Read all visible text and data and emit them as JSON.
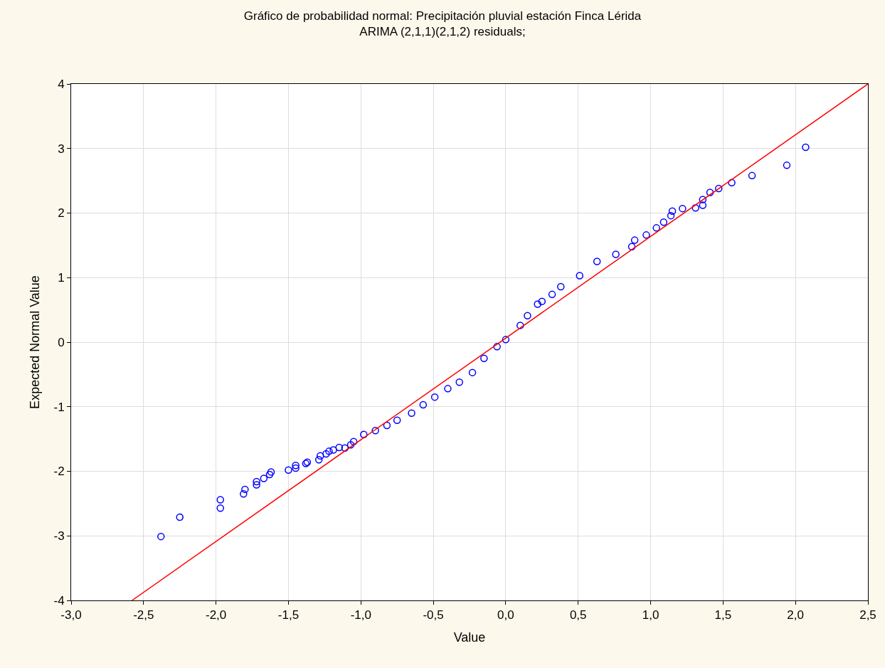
{
  "chart_data": {
    "type": "scatter",
    "title": "Gráfico de probabilidad normal: Precipitación pluvial estación Finca Lérida",
    "subtitle": "ARIMA (2,1,1)(2,1,2) residuals;",
    "xlabel": "Value",
    "ylabel": "Expected Normal Value",
    "series": [
      {
        "color": "#0000ff",
        "marker": "circle",
        "x": [
          -2.38,
          -2.25,
          -1.97,
          -1.97,
          -1.81,
          -1.8,
          -1.72,
          -1.72,
          -1.67,
          -1.63,
          -1.62,
          -1.5,
          -1.45,
          -1.45,
          -1.38,
          -1.37,
          -1.29,
          -1.28,
          -1.24,
          -1.22,
          -1.19,
          -1.15,
          -1.11,
          -1.07,
          -1.05,
          -0.98,
          -0.9,
          -0.82,
          -0.75,
          -0.65,
          -0.57,
          -0.49,
          -0.4,
          -0.32,
          -0.23,
          -0.15,
          -0.06,
          0.0,
          0.1,
          0.15,
          0.22,
          0.25,
          0.32,
          0.38,
          0.51,
          0.63,
          0.76,
          0.87,
          0.89,
          0.97,
          1.04,
          1.09,
          1.14,
          1.15,
          1.22,
          1.31,
          1.36,
          1.36,
          1.41,
          1.47,
          1.56,
          1.7,
          1.94,
          2.07
        ],
        "values": [
          -3.01,
          -2.71,
          -2.57,
          -2.44,
          -2.35,
          -2.28,
          -2.21,
          -2.16,
          -2.11,
          -2.05,
          -2.01,
          -1.98,
          -1.95,
          -1.91,
          -1.88,
          -1.86,
          -1.82,
          -1.76,
          -1.73,
          -1.69,
          -1.67,
          -1.63,
          -1.64,
          -1.59,
          -1.54,
          -1.43,
          -1.37,
          -1.29,
          -1.21,
          -1.1,
          -0.97,
          -0.85,
          -0.72,
          -0.62,
          -0.47,
          -0.25,
          -0.07,
          0.04,
          0.26,
          0.41,
          0.59,
          0.63,
          0.74,
          0.86,
          1.03,
          1.25,
          1.36,
          1.48,
          1.58,
          1.66,
          1.77,
          1.86,
          1.96,
          2.03,
          2.07,
          2.08,
          2.12,
          2.21,
          2.32,
          2.38,
          2.47,
          2.58,
          2.74,
          3.02
        ]
      },
      {
        "type": "line",
        "color": "#ff0000",
        "marker": "none",
        "x": [
          -2.58,
          2.5
        ],
        "values": [
          -4,
          4
        ]
      }
    ],
    "xlim": [
      -3,
      2.5
    ],
    "ylim": [
      -4,
      4
    ],
    "xticks": [
      {
        "value": -3,
        "label": "-3,0"
      },
      {
        "value": -2.5,
        "label": "-2,5"
      },
      {
        "value": -2,
        "label": "-2,0"
      },
      {
        "value": -1.5,
        "label": "-1,5"
      },
      {
        "value": -1,
        "label": "-1,0"
      },
      {
        "value": -0.5,
        "label": "-0,5"
      },
      {
        "value": 0,
        "label": "0,0"
      },
      {
        "value": 0.5,
        "label": "0,5"
      },
      {
        "value": 1,
        "label": "1,0"
      },
      {
        "value": 1.5,
        "label": "1,5"
      },
      {
        "value": 2,
        "label": "2,0"
      },
      {
        "value": 2.5,
        "label": "2,5"
      }
    ],
    "yticks": [
      -4,
      -3,
      -2,
      -1,
      0,
      1,
      2,
      3,
      4
    ],
    "grid": true
  }
}
